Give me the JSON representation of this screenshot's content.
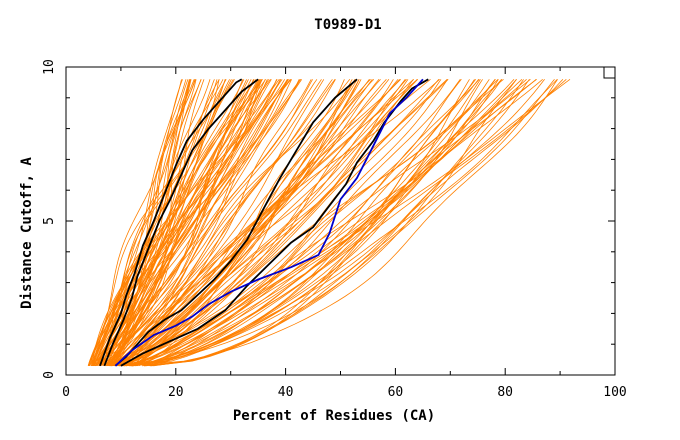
{
  "chart_data": {
    "type": "line",
    "title": "T0989-D1",
    "xlabel": "Percent of Residues (CA)",
    "ylabel": "Distance Cutoff, A",
    "xlim": [
      0,
      100
    ],
    "ylim": [
      0,
      10
    ],
    "x_ticks": [
      0,
      20,
      40,
      60,
      80,
      100
    ],
    "y_ticks": [
      0,
      5,
      10
    ],
    "grid": false,
    "legend": "none",
    "colors": {
      "background_models": "#ff8000",
      "highlight_black": "#000000",
      "highlight_blue": "#0000cc",
      "axis": "#000000"
    },
    "series": [
      {
        "color": "#000000",
        "points": [
          [
            6.2,
            0.3
          ],
          [
            8,
            1.2
          ],
          [
            10,
            2
          ],
          [
            11,
            2.6
          ],
          [
            12.5,
            3.3
          ],
          [
            14,
            4.2
          ],
          [
            16,
            5
          ],
          [
            18,
            5.9
          ],
          [
            20,
            6.8
          ],
          [
            22,
            7.6
          ],
          [
            25,
            8.3
          ],
          [
            28,
            8.9
          ],
          [
            31,
            9.5
          ],
          [
            32,
            9.6
          ]
        ]
      },
      {
        "color": "#000000",
        "points": [
          [
            7,
            0.3
          ],
          [
            8.5,
            1
          ],
          [
            10.5,
            1.8
          ],
          [
            12,
            2.5
          ],
          [
            13,
            3.2
          ],
          [
            15,
            4.1
          ],
          [
            17,
            5
          ],
          [
            19,
            5.7
          ],
          [
            21,
            6.5
          ],
          [
            23,
            7.3
          ],
          [
            26,
            8
          ],
          [
            29,
            8.6
          ],
          [
            32,
            9.2
          ],
          [
            35,
            9.6
          ]
        ]
      },
      {
        "color": "#000000",
        "points": [
          [
            9,
            0.3
          ],
          [
            11,
            0.6
          ],
          [
            13,
            1
          ],
          [
            15,
            1.4
          ],
          [
            18,
            1.8
          ],
          [
            21,
            2.1
          ],
          [
            24,
            2.6
          ],
          [
            27,
            3.1
          ],
          [
            30,
            3.7
          ],
          [
            33,
            4.4
          ],
          [
            36,
            5.4
          ],
          [
            39,
            6.4
          ],
          [
            42,
            7.3
          ],
          [
            45,
            8.2
          ],
          [
            49,
            9
          ],
          [
            53,
            9.6
          ]
        ]
      },
      {
        "color": "#000000",
        "points": [
          [
            10,
            0.3
          ],
          [
            14,
            0.7
          ],
          [
            19,
            1.1
          ],
          [
            24,
            1.5
          ],
          [
            29,
            2.1
          ],
          [
            33,
            2.9
          ],
          [
            37,
            3.6
          ],
          [
            41,
            4.3
          ],
          [
            45,
            4.8
          ],
          [
            48,
            5.5
          ],
          [
            51,
            6.2
          ],
          [
            53,
            6.9
          ],
          [
            56,
            7.6
          ],
          [
            58,
            8.2
          ],
          [
            61,
            8.9
          ],
          [
            63,
            9.3
          ],
          [
            66,
            9.6
          ]
        ]
      },
      {
        "color": "#0000cc",
        "points": [
          [
            9,
            0.3
          ],
          [
            12,
            0.8
          ],
          [
            16,
            1.3
          ],
          [
            20,
            1.6
          ],
          [
            23,
            1.9
          ],
          [
            26,
            2.3
          ],
          [
            30,
            2.7
          ],
          [
            35,
            3.1
          ],
          [
            41,
            3.5
          ],
          [
            46,
            3.9
          ],
          [
            48,
            4.6
          ],
          [
            50,
            5.7
          ],
          [
            53,
            6.4
          ],
          [
            55,
            7.1
          ],
          [
            57,
            7.8
          ],
          [
            59,
            8.5
          ],
          [
            62,
            9
          ],
          [
            65,
            9.6
          ]
        ]
      }
    ]
  }
}
